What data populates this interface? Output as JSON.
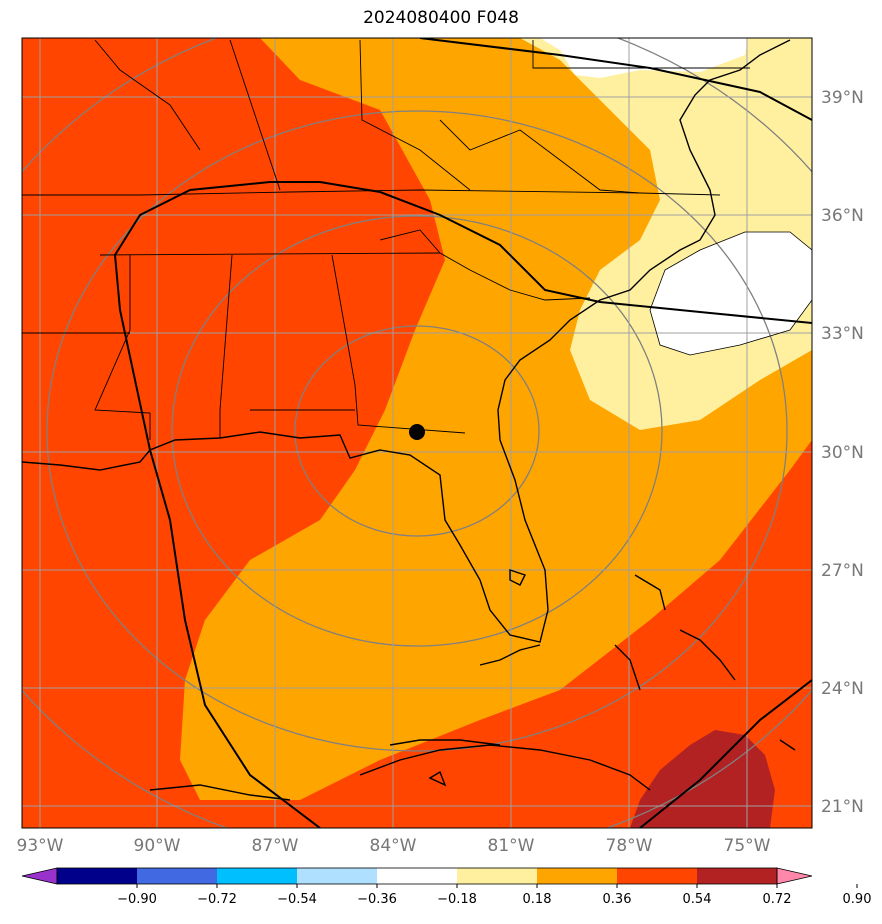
{
  "title": "2024080400 F048",
  "map": {
    "lat_labels": [
      "39°N",
      "36°N",
      "33°N",
      "30°N",
      "27°N",
      "24°N",
      "21°N"
    ],
    "lon_labels": [
      "93°W",
      "90°W",
      "87°W",
      "84°W",
      "81°W",
      "78°W",
      "75°W"
    ],
    "center_marker": "filled-black-circle"
  },
  "colors": {
    "c1": "#ff4500",
    "c2": "#ffa500",
    "c3": "#fff0a0",
    "c4": "#b22222",
    "white": "#ffffff",
    "gridline": "#a0a0a0",
    "range_ring": "#808080"
  },
  "colorbar": {
    "ticks": [
      "−0.90",
      "−0.72",
      "−0.54",
      "−0.36",
      "−0.18",
      "0.18",
      "0.36",
      "0.54",
      "0.72",
      "0.90"
    ],
    "colors": [
      "#9932cc",
      "#00008b",
      "#4169e1",
      "#00bfff",
      "#b0e0ff",
      "#ffffff",
      "#fff0a0",
      "#ffa500",
      "#ff4500",
      "#b22222",
      "#ff88aa"
    ]
  }
}
